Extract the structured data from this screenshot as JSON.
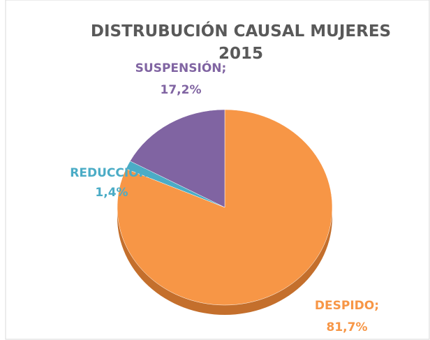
{
  "chart_data": {
    "type": "pie",
    "title": "DISTRUBUCIÓN CAUSAL MUJERES 2015",
    "categories": [
      "DESPIDO",
      "REDUCCIÓN",
      "SUSPENSIÓN"
    ],
    "values": [
      81.7,
      1.4,
      17.2
    ],
    "value_labels": [
      "81,7%",
      "1,4%",
      "17,2%"
    ],
    "label_separator": ";",
    "colors": [
      "#f79646",
      "#4bacc6",
      "#8064a2"
    ]
  }
}
